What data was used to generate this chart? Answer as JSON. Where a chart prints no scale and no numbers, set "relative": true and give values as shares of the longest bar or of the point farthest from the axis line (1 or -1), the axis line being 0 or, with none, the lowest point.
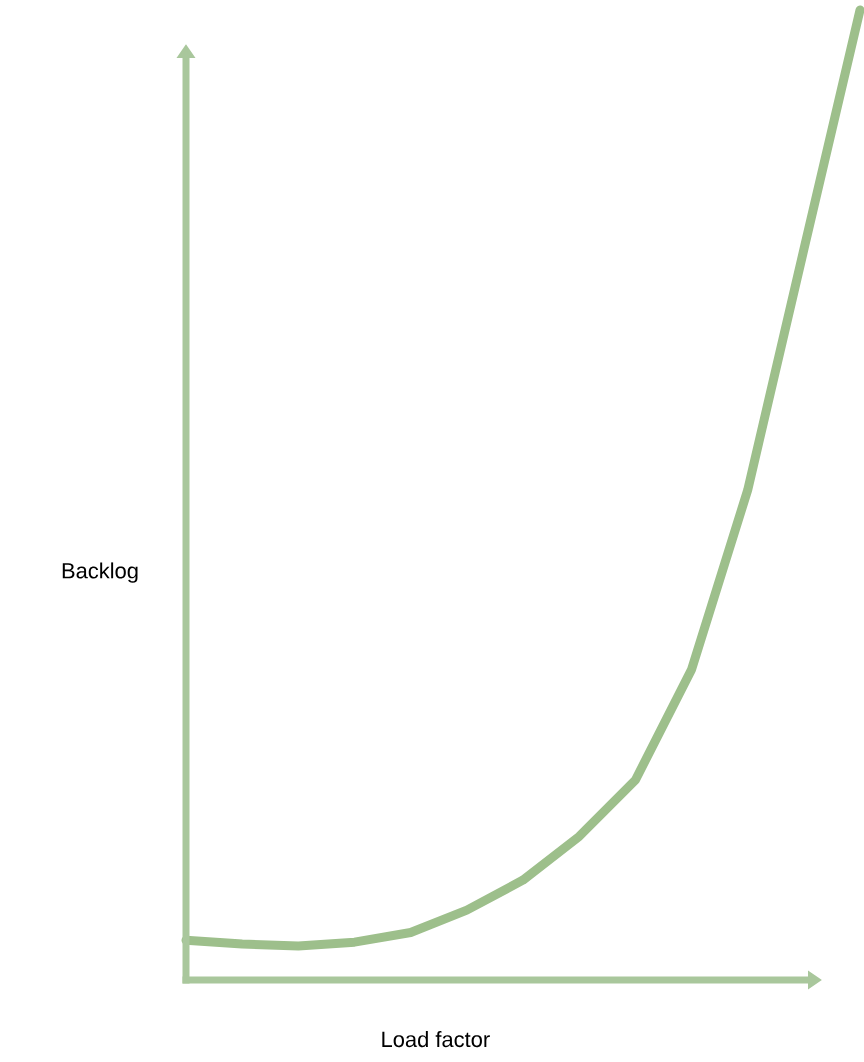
{
  "chart_data": {
    "type": "line",
    "xlabel": "Load factor",
    "ylabel": "Backlog",
    "relative": true,
    "color": "#9dbf8b",
    "categories": [
      null,
      null,
      null,
      null,
      null,
      null,
      null,
      null,
      null,
      null,
      null,
      null,
      null
    ],
    "values": [
      0.041,
      0.037,
      0.035,
      0.039,
      0.049,
      0.072,
      0.103,
      0.148,
      0.206,
      0.32,
      0.505,
      0.753,
      1.0
    ]
  }
}
